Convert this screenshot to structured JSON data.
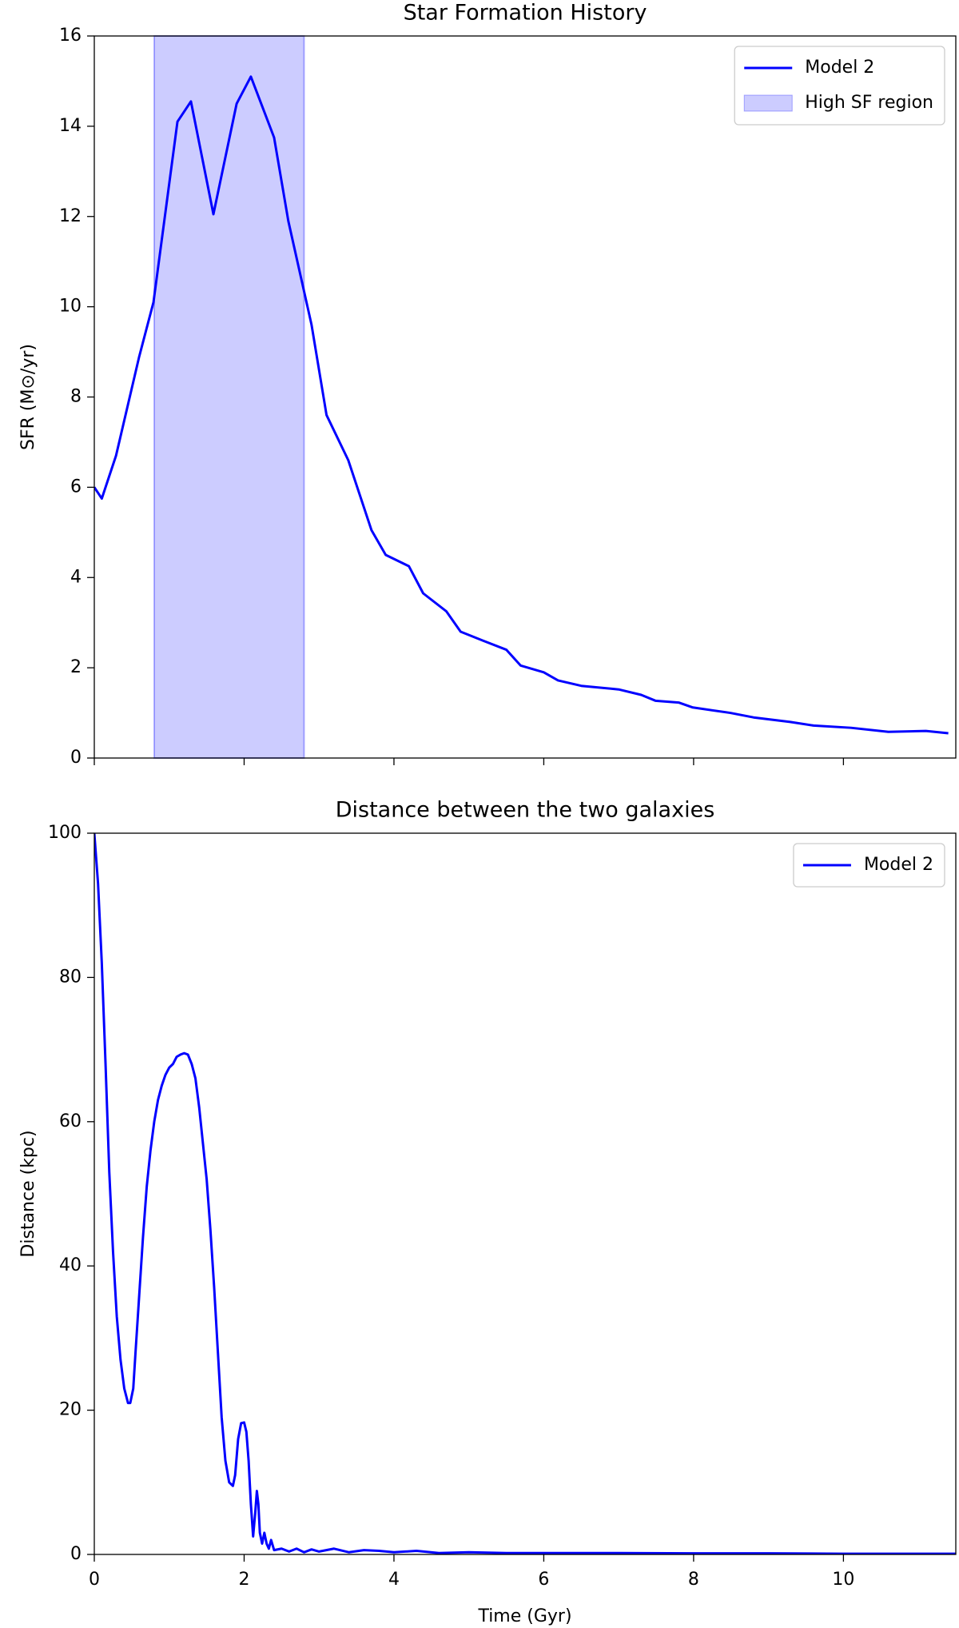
{
  "chart_data": [
    {
      "type": "line",
      "title": "Star Formation History",
      "ylabel": "SFR (M⊙/yr)",
      "xlim": [
        0,
        11.5
      ],
      "ylim": [
        0,
        16
      ],
      "yticks": [
        0,
        2,
        4,
        6,
        8,
        10,
        12,
        14,
        16
      ],
      "legend": "upper right",
      "span": {
        "name": "High SF region",
        "x": [
          0.8,
          2.8
        ],
        "color": "#0000ff"
      },
      "series": [
        {
          "name": "Model 2",
          "color": "#0000ff",
          "x": [
            0,
            0.1,
            0.29,
            0.6,
            0.79,
            1.11,
            1.29,
            1.59,
            1.9,
            2.09,
            2.4,
            2.59,
            2.9,
            3.1,
            3.39,
            3.7,
            3.89,
            4.2,
            4.39,
            4.7,
            4.89,
            5.19,
            5.5,
            5.69,
            6.0,
            6.19,
            6.5,
            7.0,
            7.3,
            7.49,
            7.8,
            7.99,
            8.49,
            8.8,
            9.29,
            9.6,
            10.1,
            10.6,
            11.1,
            11.4
          ],
          "values": [
            6.0,
            5.75,
            6.7,
            8.9,
            10.1,
            14.1,
            14.55,
            12.05,
            14.5,
            15.1,
            13.75,
            11.9,
            9.6,
            7.6,
            6.6,
            5.05,
            4.5,
            4.25,
            3.65,
            3.25,
            2.8,
            2.6,
            2.4,
            2.05,
            1.9,
            1.72,
            1.6,
            1.52,
            1.4,
            1.27,
            1.23,
            1.12,
            1.0,
            0.9,
            0.8,
            0.72,
            0.67,
            0.58,
            0.6,
            0.55
          ]
        }
      ]
    },
    {
      "type": "line",
      "title": "Distance between the two galaxies",
      "ylabel": "Distance (kpc)",
      "xlabel": "Time (Gyr)",
      "xlim": [
        0,
        11.5
      ],
      "xticks": [
        0,
        2,
        4,
        6,
        8,
        10
      ],
      "ylim": [
        0,
        100
      ],
      "yticks": [
        0,
        20,
        40,
        60,
        80,
        100
      ],
      "legend": "upper right",
      "series": [
        {
          "name": "Model 2",
          "color": "#0000ff",
          "x": [
            0,
            0.05,
            0.1,
            0.15,
            0.2,
            0.25,
            0.3,
            0.35,
            0.4,
            0.45,
            0.48,
            0.52,
            0.55,
            0.6,
            0.65,
            0.7,
            0.75,
            0.8,
            0.85,
            0.9,
            0.95,
            1.0,
            1.05,
            1.1,
            1.15,
            1.2,
            1.25,
            1.3,
            1.35,
            1.4,
            1.45,
            1.5,
            1.55,
            1.6,
            1.65,
            1.7,
            1.75,
            1.8,
            1.85,
            1.88,
            1.92,
            1.96,
            2.0,
            2.03,
            2.06,
            2.09,
            2.12,
            2.15,
            2.17,
            2.19,
            2.21,
            2.24,
            2.27,
            2.3,
            2.33,
            2.36,
            2.4,
            2.5,
            2.6,
            2.7,
            2.8,
            2.9,
            3.0,
            3.2,
            3.4,
            3.6,
            3.8,
            4.0,
            4.3,
            4.6,
            5.0,
            5.5,
            6.0,
            7.0,
            8.0,
            9.0,
            10.0,
            11.0,
            11.5
          ],
          "values": [
            100,
            93,
            82,
            68,
            53,
            42,
            33,
            27,
            23,
            21,
            21,
            23,
            28,
            36,
            44,
            51,
            56,
            60,
            63,
            65,
            66.5,
            67.5,
            68,
            69,
            69.3,
            69.5,
            69.3,
            68,
            66,
            62,
            57,
            52,
            45,
            37,
            28,
            19,
            13,
            10,
            9.5,
            11,
            16,
            18.2,
            18.3,
            17,
            13,
            7,
            2.5,
            6,
            8.8,
            7,
            3,
            1.5,
            3,
            1.5,
            0.8,
            2,
            0.6,
            0.8,
            0.4,
            0.8,
            0.3,
            0.7,
            0.4,
            0.8,
            0.3,
            0.6,
            0.5,
            0.3,
            0.5,
            0.2,
            0.3,
            0.2,
            0.2,
            0.2,
            0.15,
            0.15,
            0.1,
            0.1,
            0.1
          ]
        }
      ]
    }
  ]
}
